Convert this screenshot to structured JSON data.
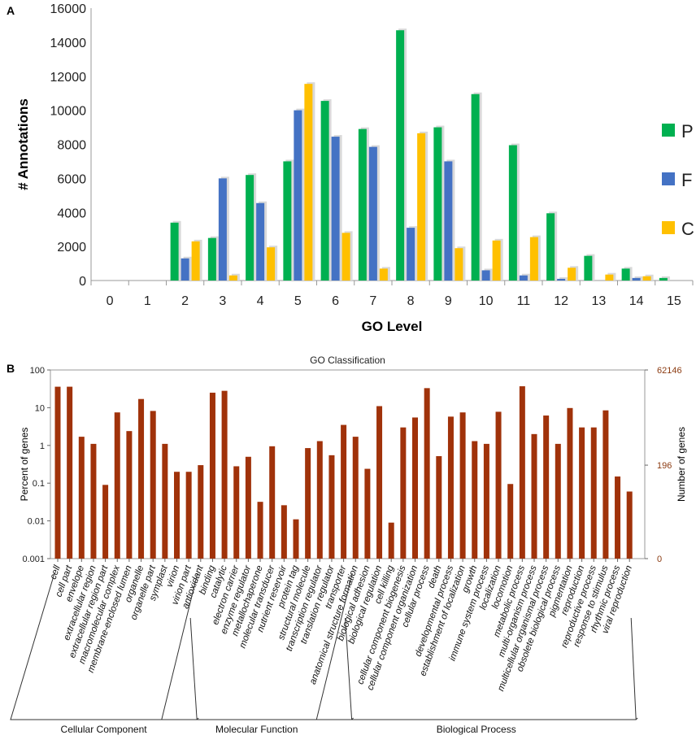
{
  "chart_data": [
    {
      "panel": "A",
      "type": "bar",
      "panel_label": "A",
      "title": "",
      "xlabel": "GO Level",
      "ylabel": "# Annotations",
      "ylim": [
        0,
        16000
      ],
      "yticks": [
        "0",
        "2000",
        "4000",
        "6000",
        "8000",
        "10000",
        "12000",
        "14000",
        "16000"
      ],
      "categories": [
        "0",
        "1",
        "2",
        "3",
        "4",
        "5",
        "6",
        "7",
        "8",
        "9",
        "10",
        "11",
        "12",
        "13",
        "14",
        "15"
      ],
      "legend_position": "right",
      "series": [
        {
          "name": "P",
          "color": "#00b050",
          "values": [
            0,
            0,
            3400,
            2500,
            6200,
            7000,
            10550,
            8900,
            14700,
            9000,
            10950,
            7950,
            3950,
            1450,
            700,
            150
          ]
        },
        {
          "name": "F",
          "color": "#4472c4",
          "values": [
            0,
            0,
            1300,
            6000,
            4550,
            10000,
            8450,
            7850,
            3100,
            7000,
            600,
            300,
            100,
            0,
            150,
            0
          ]
        },
        {
          "name": "C",
          "color": "#ffc000",
          "values": [
            0,
            0,
            2300,
            300,
            1950,
            11550,
            2800,
            700,
            8650,
            1900,
            2350,
            2550,
            750,
            350,
            250,
            0
          ]
        }
      ]
    },
    {
      "panel": "B",
      "type": "bar",
      "panel_label": "B",
      "title": "GO Classification",
      "xlabel": "",
      "ylabel": "Percent of genes",
      "ylabel_right": "Number of genes",
      "yscale": "log",
      "ylim": [
        0.001,
        100
      ],
      "yticks": [
        "100",
        "10",
        "1",
        "0.1",
        "0.01",
        "0.001"
      ],
      "right_ticks": [
        "62146",
        "196",
        "0"
      ],
      "bar_color": "#a0320a",
      "categories": [
        "cell",
        "cell part",
        "envelope",
        "extracellular region",
        "extracellular region part",
        "macromolecular complex",
        "membrane-enclosed lumen",
        "organelle",
        "organelle part",
        "symplast",
        "virion",
        "virion part",
        "antioxidant",
        "binding",
        "catalytic",
        "electron carrier",
        "enzyme regulator",
        "metallochaperone",
        "molecular transducer",
        "nutrient reservoir",
        "protein tag",
        "structural molecule",
        "transcription regulator",
        "translation regulator",
        "transporter",
        "anatomical structure formation",
        "biological adhesion",
        "biological regulation",
        "cell killing",
        "cellular component biogenesis",
        "cellular component organization",
        "cellular process",
        "death",
        "developmental process",
        "establishment of localization",
        "growth",
        "immune system process",
        "localization",
        "locomotion",
        "metabolic process",
        "multi-organism process",
        "multicellular organismal process",
        "obsolete biological process",
        "pigmentation",
        "reproduction",
        "reproductive process",
        "response to stimulus",
        "rhythmic process",
        "viral reproduction"
      ],
      "values": [
        36,
        36,
        1.7,
        1.1,
        0.09,
        7.5,
        2.4,
        17,
        8.2,
        1.1,
        0.2,
        0.2,
        0.3,
        25,
        28,
        0.28,
        0.5,
        0.032,
        0.95,
        0.026,
        0.011,
        0.85,
        1.3,
        0.55,
        3.5,
        1.7,
        0.24,
        11,
        0.009,
        3.0,
        5.5,
        33,
        0.52,
        5.8,
        7.5,
        1.3,
        1.1,
        7.8,
        0.095,
        37,
        2.0,
        6.2,
        1.1,
        9.8,
        3.0,
        3.0,
        8.5,
        0.15,
        0.06
      ],
      "groups": [
        {
          "name": "Cellular Component",
          "start": 0,
          "end": 11
        },
        {
          "name": "Molecular Function",
          "start": 12,
          "end": 24
        },
        {
          "name": "Biological Process",
          "start": 25,
          "end": 48
        }
      ]
    }
  ]
}
